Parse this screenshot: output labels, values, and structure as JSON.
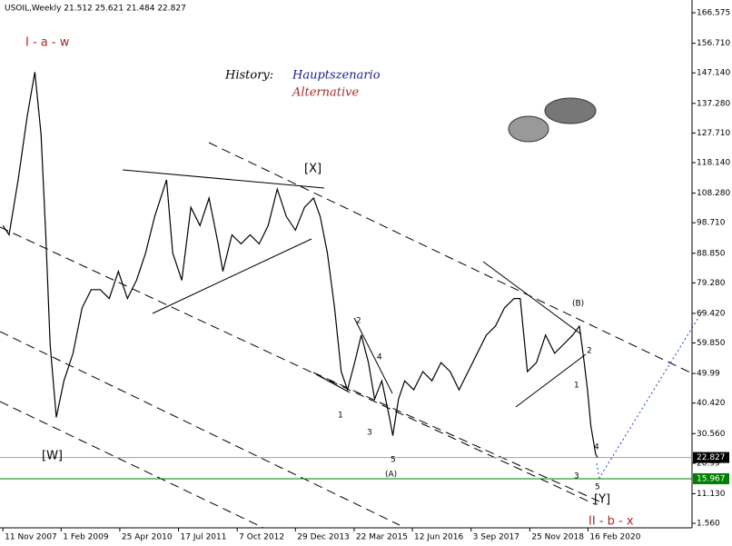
{
  "chart_data": {
    "type": "line",
    "title": "USOIL,Weekly  21.512 25.621 21.484 22.827",
    "series": [
      {
        "name": "USOIL",
        "color": "#000000",
        "x": [
          2007.86,
          2007.99,
          2008.18,
          2008.37,
          2008.53,
          2008.66,
          2008.76,
          2008.85,
          2008.98,
          2009.14,
          2009.33,
          2009.52,
          2009.71,
          2009.9,
          2010.09,
          2010.28,
          2010.47,
          2010.66,
          2010.85,
          2011.04,
          2011.29,
          2011.42,
          2011.61,
          2011.8,
          2011.99,
          2012.18,
          2012.37,
          2012.47,
          2012.66,
          2012.85,
          2013.04,
          2013.23,
          2013.42,
          2013.61,
          2013.8,
          2013.99,
          2014.18,
          2014.37,
          2014.51,
          2014.66,
          2014.81,
          2014.95,
          2015.08,
          2015.23,
          2015.37,
          2015.52,
          2015.65,
          2015.8,
          2015.96,
          2016.03,
          2016.15,
          2016.28,
          2016.47,
          2016.66,
          2016.85,
          2017.04,
          2017.23,
          2017.42,
          2017.61,
          2017.8,
          2017.99,
          2018.18,
          2018.37,
          2018.57,
          2018.7,
          2018.85,
          2019.04,
          2019.23,
          2019.42,
          2019.61,
          2019.8,
          2019.94,
          2020.03,
          2020.11,
          2020.18,
          2020.28,
          2020.32
        ],
        "values": [
          97.8,
          94.8,
          112.6,
          133.2,
          147.4,
          127.3,
          94.8,
          59.4,
          35.8,
          47.6,
          56.5,
          71.2,
          77.1,
          77.1,
          74.2,
          83.0,
          74.2,
          80.1,
          88.9,
          100.7,
          112.6,
          88.9,
          80.1,
          103.7,
          97.8,
          106.7,
          91.9,
          83.0,
          94.8,
          91.9,
          94.8,
          91.9,
          97.8,
          109.6,
          100.7,
          96.3,
          103.7,
          106.7,
          100.7,
          88.9,
          71.2,
          50.6,
          44.7,
          53.5,
          62.4,
          53.5,
          41.7,
          47.6,
          35.8,
          29.9,
          41.7,
          47.6,
          44.7,
          50.6,
          47.6,
          53.5,
          50.6,
          44.7,
          50.6,
          56.5,
          62.4,
          65.3,
          71.2,
          74.2,
          74.2,
          50.6,
          53.5,
          62.4,
          56.5,
          59.4,
          62.4,
          65.3,
          54.9,
          44.7,
          33.0,
          24.0,
          22.827
        ]
      }
    ],
    "xlim": [
      2007.8,
      2022.3
    ],
    "xticks": [
      {
        "value": 2007.86,
        "label": "11 Nov 2007"
      },
      {
        "value": 2009.08,
        "label": "1 Feb 2009"
      },
      {
        "value": 2010.31,
        "label": "25 Apr 2010"
      },
      {
        "value": 2011.54,
        "label": "17 Jul 2011"
      },
      {
        "value": 2012.77,
        "label": "7 Oct 2012"
      },
      {
        "value": 2013.99,
        "label": "29 Dec 2013"
      },
      {
        "value": 2015.22,
        "label": "22 Mar 2015"
      },
      {
        "value": 2016.44,
        "label": "12 Jun 2016"
      },
      {
        "value": 2017.67,
        "label": "3 Sep 2017"
      },
      {
        "value": 2018.9,
        "label": "25 Nov 2018"
      },
      {
        "value": 2020.12,
        "label": "16 Feb 2020"
      }
    ],
    "ylim": [
      0.1,
      170.7
    ],
    "yticks": [
      166.575,
      {
        "value": 156.71,
        "label": "156.710"
      },
      {
        "value": 147.14,
        "label": "147.140"
      },
      {
        "value": 137.28,
        "label": "137.280"
      },
      {
        "value": 127.71,
        "label": "127.710"
      },
      {
        "value": 118.14,
        "label": "118.140"
      },
      {
        "value": 108.28,
        "label": "108.280"
      },
      {
        "value": 98.71,
        "label": "98.710"
      },
      {
        "value": 88.85,
        "label": "88.850"
      },
      {
        "value": 79.28,
        "label": "79.280"
      },
      {
        "value": 69.42,
        "label": "69.420"
      },
      {
        "value": 59.85,
        "label": "59.850"
      },
      49.99,
      {
        "value": 40.42,
        "label": "40.420"
      },
      {
        "value": 30.56,
        "label": "30.560"
      },
      20.99,
      {
        "value": 11.13,
        "label": "11.130"
      },
      {
        "value": 1.56,
        "label": "1.560"
      }
    ],
    "price_lines": [
      {
        "value": 22.827,
        "color": "#a0a0a0"
      },
      {
        "value": 15.967,
        "color": "#008000"
      }
    ],
    "annotations": [
      {
        "text": "I - a - w",
        "color": "#a52a2a"
      },
      {
        "text": "History:",
        "color": "#000000"
      },
      {
        "text": "Hauptszenario",
        "color": "#1a1a8c"
      },
      {
        "text": "Alternative",
        "color": "#a52a2a"
      },
      {
        "text": "[X]",
        "color": "#000000"
      },
      {
        "text": "[W]",
        "color": "#000000"
      },
      {
        "text": "2",
        "color": "#000000"
      },
      {
        "text": "4",
        "color": "#000000"
      },
      {
        "text": "1",
        "color": "#000000"
      },
      {
        "text": "3",
        "color": "#000000"
      },
      {
        "text": "5",
        "color": "#000000"
      },
      {
        "text": "(A)",
        "color": "#000000"
      },
      {
        "text": "(B)",
        "color": "#000000"
      },
      {
        "text": "2",
        "color": "#000000"
      },
      {
        "text": "1",
        "color": "#000000"
      },
      {
        "text": "4",
        "color": "#000000"
      },
      {
        "text": "3",
        "color": "#000000"
      },
      {
        "text": "5",
        "color": "#000000"
      },
      {
        "text": "[Y]",
        "color": "#000000"
      },
      {
        "text": "II - b - x",
        "color": "#a52a2a"
      }
    ]
  }
}
